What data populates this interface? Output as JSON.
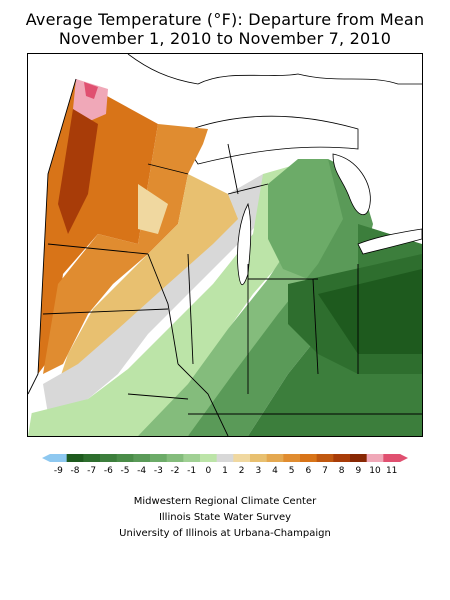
{
  "title_line1": "Average Temperature (°F): Departure from Mean",
  "title_line2": "November 1, 2010 to November 7, 2010",
  "credits": {
    "line1": "Midwestern Regional Climate Center",
    "line2": "Illinois State Water Survey",
    "line3": "University of Illinois at Urbana-Champaign"
  },
  "legend": {
    "ticks": [
      "-9",
      "-8",
      "-7",
      "-6",
      "-5",
      "-4",
      "-3",
      "-2",
      "-1",
      "0",
      "1",
      "2",
      "3",
      "4",
      "5",
      "6",
      "7",
      "8",
      "9",
      "10",
      "11"
    ],
    "colors": [
      "#8ec8f0",
      "#1e5a1e",
      "#2e6e2e",
      "#3c7e3c",
      "#4a8c48",
      "#5a9a58",
      "#6cab68",
      "#84bc7c",
      "#a0d094",
      "#bce4a8",
      "#d8d8d8",
      "#f0d8a0",
      "#e8c070",
      "#e4a850",
      "#e08c30",
      "#d87418",
      "#c05810",
      "#a83c08",
      "#882804",
      "#f0a8b8",
      "#e05070"
    ]
  },
  "map": {
    "region": "Midwest",
    "color_scale": "temperature departure"
  }
}
